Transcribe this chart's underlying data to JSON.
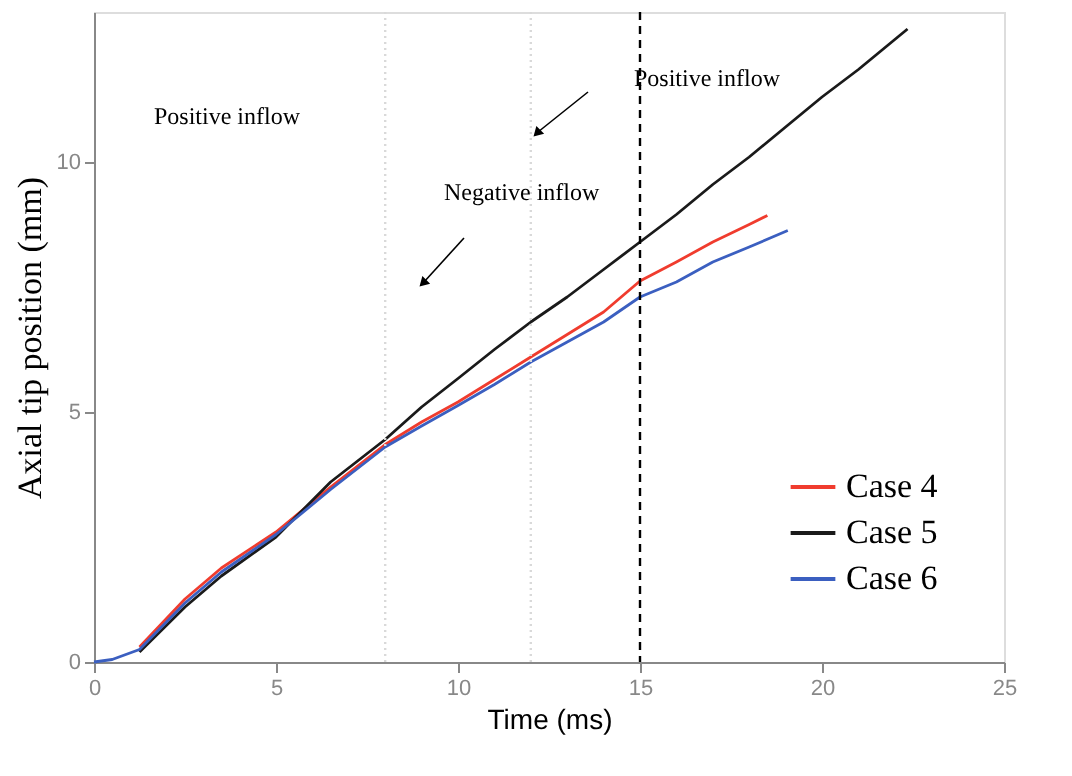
{
  "chart_data": {
    "type": "line",
    "xlabel": "Time (ms)",
    "ylabel": "Axial tip position (mm)",
    "xlim": [
      0,
      25
    ],
    "ylim": [
      0,
      13
    ],
    "xticks": [
      0,
      5,
      10,
      15,
      20,
      25
    ],
    "yticks": [
      0,
      5,
      10
    ],
    "grid": false,
    "legend": "bottom right",
    "line_style": "solid",
    "marker": "none",
    "annotations": [
      "Positive inflow",
      "Negative inflow",
      "Positive inflow"
    ],
    "ref_lines": [
      {
        "axis": "x",
        "value": 8,
        "color": "#d9d9d9",
        "line_style": "dotted"
      },
      {
        "axis": "x",
        "value": 12,
        "color": "#d9d9d9",
        "line_style": "dotted"
      },
      {
        "axis": "x",
        "value": 15,
        "color": "#000000",
        "line_style": "dashed"
      }
    ],
    "series": [
      {
        "name": "Case 4",
        "color": "#f03c2e",
        "x": [
          1.25,
          2.5,
          3.5,
          5,
          6.5,
          8,
          9,
          10,
          11,
          12,
          13,
          14,
          15,
          16,
          17,
          18,
          18.5
        ],
        "values": [
          0.3,
          1.26,
          1.88,
          2.6,
          3.5,
          4.35,
          4.8,
          5.2,
          5.65,
          6.1,
          6.55,
          7.0,
          7.62,
          8.0,
          8.4,
          8.75,
          8.93
        ]
      },
      {
        "name": "Case 5",
        "color": "#1a1a1a",
        "x": [
          1.25,
          2.5,
          3.5,
          5,
          6.5,
          8,
          9,
          10,
          11,
          12,
          13,
          14,
          15,
          16,
          17,
          18,
          19,
          20,
          21,
          22,
          22.35
        ],
        "values": [
          0.2,
          1.1,
          1.72,
          2.5,
          3.6,
          4.45,
          5.1,
          5.67,
          6.25,
          6.8,
          7.3,
          7.85,
          8.4,
          8.95,
          9.55,
          10.1,
          10.7,
          11.3,
          11.85,
          12.45,
          12.66
        ]
      },
      {
        "name": "Case 6",
        "color": "#3b5fc0",
        "x": [
          0,
          0.5,
          1.25,
          2.5,
          3.5,
          5,
          6.5,
          8,
          9,
          10,
          11,
          12,
          13,
          14,
          15,
          16,
          17,
          18,
          19.06
        ],
        "values": [
          0,
          0.05,
          0.25,
          1.18,
          1.8,
          2.55,
          3.45,
          4.3,
          4.72,
          5.13,
          5.55,
          6.0,
          6.4,
          6.8,
          7.3,
          7.6,
          8.0,
          8.3,
          8.63
        ]
      }
    ]
  }
}
